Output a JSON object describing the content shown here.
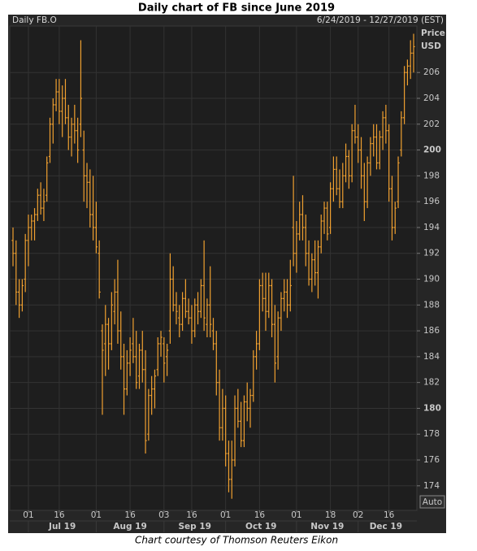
{
  "chart_data": {
    "type": "ohlc",
    "title": "Daily chart of FB since June 2019",
    "symbol": "Daily FB.O",
    "range": "6/24/2019 - 12/27/2019 (EST)",
    "y_label": "Price",
    "y_unit": "USD",
    "auto_label": "Auto",
    "caption": "Chart courtesy of Thomson Reuters Eikon",
    "color": "#f0a030",
    "grid": true,
    "categories": [
      null,
      null,
      null,
      null,
      null,
      "01",
      null,
      null,
      null,
      null,
      null,
      null,
      null,
      null,
      null,
      "16",
      null,
      null,
      null,
      null,
      null,
      null,
      null,
      null,
      null,
      null,
      null,
      "01",
      null,
      null,
      null,
      null,
      null,
      null,
      null,
      null,
      null,
      null,
      "16",
      null,
      null,
      null,
      null,
      null,
      null,
      null,
      null,
      null,
      null,
      "03",
      null,
      null,
      null,
      null,
      null,
      null,
      null,
      null,
      "16",
      null,
      null,
      null,
      null,
      null,
      null,
      null,
      null,
      null,
      null,
      "01",
      null,
      null,
      null,
      null,
      null,
      null,
      null,
      null,
      null,
      null,
      "16",
      null,
      null,
      null,
      null,
      null,
      null,
      null,
      null,
      null,
      null,
      null,
      "01",
      null,
      null,
      null,
      null,
      null,
      null,
      null,
      null,
      null,
      null,
      "18",
      null,
      null,
      null,
      null,
      null,
      null,
      null,
      null,
      "02",
      null,
      null,
      null,
      null,
      null,
      null,
      null,
      null,
      null,
      "16",
      null,
      null,
      null,
      null,
      null,
      null,
      null,
      null
    ],
    "months": [
      "Jul 19",
      "Aug 19",
      "Sep 19",
      "Oct 19",
      "Nov 19",
      "Dec 19"
    ],
    "open": [
      193,
      192,
      189,
      188,
      190,
      193,
      194,
      194.5,
      195,
      196.5,
      195.5,
      196.5,
      199.5,
      202,
      203.5,
      204.5,
      203,
      204,
      202.5,
      201,
      202,
      201.5,
      202,
      200,
      198,
      197.5,
      195,
      194,
      192,
      186,
      185,
      186.5,
      185,
      187.5,
      189,
      186,
      184,
      181.5,
      183.5,
      185,
      184,
      182.5,
      184.5,
      183,
      178,
      181,
      181.5,
      183,
      185,
      185,
      184,
      186,
      190,
      188,
      187,
      186.5,
      188.5,
      187.5,
      187,
      186,
      188,
      187.5,
      189.5,
      186.5,
      188,
      186,
      185,
      182,
      178.5,
      180,
      176.5,
      174.5,
      176,
      180,
      179,
      177.5,
      180.5,
      180,
      181,
      184,
      185,
      189.5,
      188.5,
      187.5,
      189.5,
      186.5,
      184,
      187,
      188.5,
      189,
      188,
      194,
      192,
      193.5,
      195,
      194,
      192,
      190,
      191.5,
      190.5,
      192.5,
      194.5,
      195.5,
      194,
      197,
      198.5,
      197,
      196,
      198,
      199.5,
      198,
      201.5,
      201,
      200,
      198,
      196,
      199,
      200.5,
      201,
      199,
      201,
      202.5,
      201.5,
      197,
      194,
      196,
      200,
      202.5,
      206,
      206.5,
      207.5
    ],
    "high": [
      194,
      193,
      190,
      190,
      193.5,
      195,
      195,
      195.5,
      197,
      197.5,
      197,
      199.5,
      202.5,
      204,
      205.5,
      205.5,
      205,
      205.5,
      203.5,
      202.5,
      203.5,
      202.5,
      208.5,
      201.5,
      199,
      198.5,
      198,
      196,
      193,
      186.5,
      188,
      187,
      189,
      190,
      191.5,
      187.5,
      185,
      184.5,
      185.5,
      187,
      186,
      185,
      186,
      184.5,
      181.5,
      182.5,
      183,
      185.5,
      186,
      185.5,
      185,
      192,
      191,
      189,
      188,
      189,
      190,
      188.5,
      188,
      188.5,
      189,
      190,
      193,
      188.5,
      191,
      187,
      186,
      183,
      181.5,
      181,
      177.5,
      177.5,
      181,
      181.5,
      180.5,
      181,
      182,
      181.5,
      184.5,
      186,
      190,
      190.5,
      190.5,
      190.5,
      190,
      188,
      187.5,
      189,
      190,
      190,
      191.5,
      198,
      194.5,
      196,
      196.5,
      195,
      193,
      192,
      193,
      193,
      195,
      196,
      196,
      197.5,
      199.5,
      199.5,
      198.5,
      199,
      200.5,
      200,
      202,
      203.5,
      202,
      201,
      199,
      199.5,
      201,
      202,
      202,
      201.5,
      203,
      203.5,
      202,
      198,
      196,
      199.5,
      203,
      206.5,
      207,
      208.5,
      209
    ],
    "low": [
      191,
      188,
      187,
      187.5,
      189,
      191,
      193,
      193,
      194.5,
      195,
      194.5,
      196,
      199,
      200.5,
      203,
      202,
      201,
      202,
      200,
      199.5,
      200.5,
      199,
      201,
      196,
      195.5,
      194,
      193,
      192,
      188.5,
      179.5,
      182.5,
      183,
      184.5,
      186.5,
      185,
      183,
      179.5,
      181,
      182.5,
      183.5,
      181.5,
      181.5,
      182,
      176.5,
      177.5,
      179.5,
      180,
      182.5,
      184,
      182,
      182.5,
      185,
      187.5,
      186.5,
      185.5,
      186,
      187,
      186.5,
      185,
      185.5,
      186.5,
      187,
      186,
      185.5,
      185.5,
      184.5,
      181,
      177.5,
      177.5,
      175.5,
      173.5,
      173,
      175.5,
      178.5,
      177,
      177,
      179,
      178.5,
      180.5,
      183,
      184.5,
      187.5,
      186,
      187,
      185.5,
      182,
      183,
      186,
      187.5,
      187,
      187.5,
      191,
      190.5,
      193,
      193,
      191,
      189.5,
      189,
      189.5,
      188.5,
      192,
      193.5,
      193,
      193.5,
      196,
      196.5,
      195.5,
      195.5,
      197.5,
      197,
      197.5,
      200.5,
      199,
      197,
      194.5,
      195.5,
      198,
      199.5,
      198.5,
      198.5,
      200,
      200.5,
      196,
      193,
      193.5,
      195.5,
      199.5,
      202,
      205,
      205.5,
      206
    ],
    "close": [
      192,
      189,
      188,
      189.5,
      193,
      194,
      194.5,
      195,
      196.5,
      195.5,
      196,
      199,
      202,
      203.5,
      204.5,
      203,
      204,
      202.5,
      201,
      202,
      201.5,
      200,
      204,
      198,
      197.5,
      195,
      194,
      192.5,
      189,
      184.5,
      186.5,
      185,
      188,
      189,
      186,
      184,
      181.5,
      183.5,
      184.5,
      184,
      182,
      184.5,
      183,
      177.5,
      181,
      181.5,
      182.5,
      185,
      185.5,
      183.5,
      184.5,
      190,
      188,
      187.5,
      186.5,
      188.5,
      187.5,
      187,
      186,
      188,
      187.5,
      189.5,
      187,
      188,
      186.5,
      185,
      182,
      178.5,
      180,
      176.5,
      174.5,
      176,
      180,
      179,
      177.5,
      180.5,
      180,
      181,
      184,
      185,
      189.5,
      188.5,
      187.5,
      189.5,
      186.5,
      183.5,
      187,
      188.5,
      189,
      188,
      189.5,
      192,
      193.5,
      195,
      194,
      192,
      190,
      191.5,
      190.5,
      192.5,
      194.5,
      195.5,
      193.5,
      197,
      198.5,
      197,
      196,
      198,
      199.5,
      198,
      201.5,
      201,
      200,
      198,
      196,
      199,
      200.5,
      201,
      199,
      201,
      202.5,
      201.5,
      197,
      194,
      195.5,
      199,
      202.5,
      206,
      206.5,
      207.5,
      208
    ],
    "ylim": [
      172.1,
      209.6
    ],
    "yticks": [
      174,
      176,
      178,
      180,
      182,
      184,
      186,
      188,
      190,
      192,
      194,
      196,
      198,
      200,
      202,
      204,
      206
    ]
  }
}
